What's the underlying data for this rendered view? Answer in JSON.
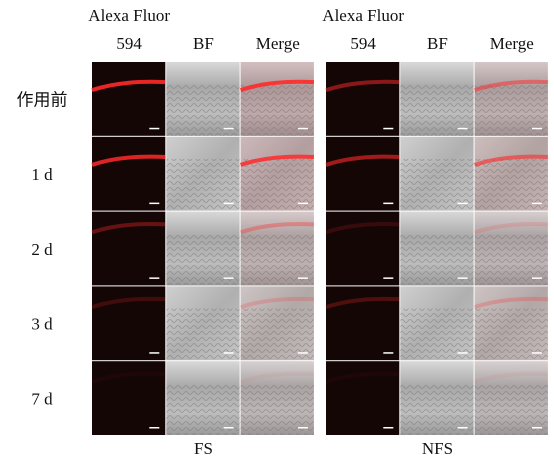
{
  "rows": [
    "作用前",
    "1 d",
    "2 d",
    "3 d",
    "7 d"
  ],
  "groups": [
    {
      "label": "FS",
      "columns": [
        [
          "Alexa Fluor",
          "594"
        ],
        [
          "BF"
        ],
        [
          "Merge"
        ]
      ]
    },
    {
      "label": "NFS",
      "columns": [
        [
          "Alexa Fluor",
          "594"
        ],
        [
          "BF"
        ],
        [
          "Merge"
        ]
      ]
    }
  ]
}
